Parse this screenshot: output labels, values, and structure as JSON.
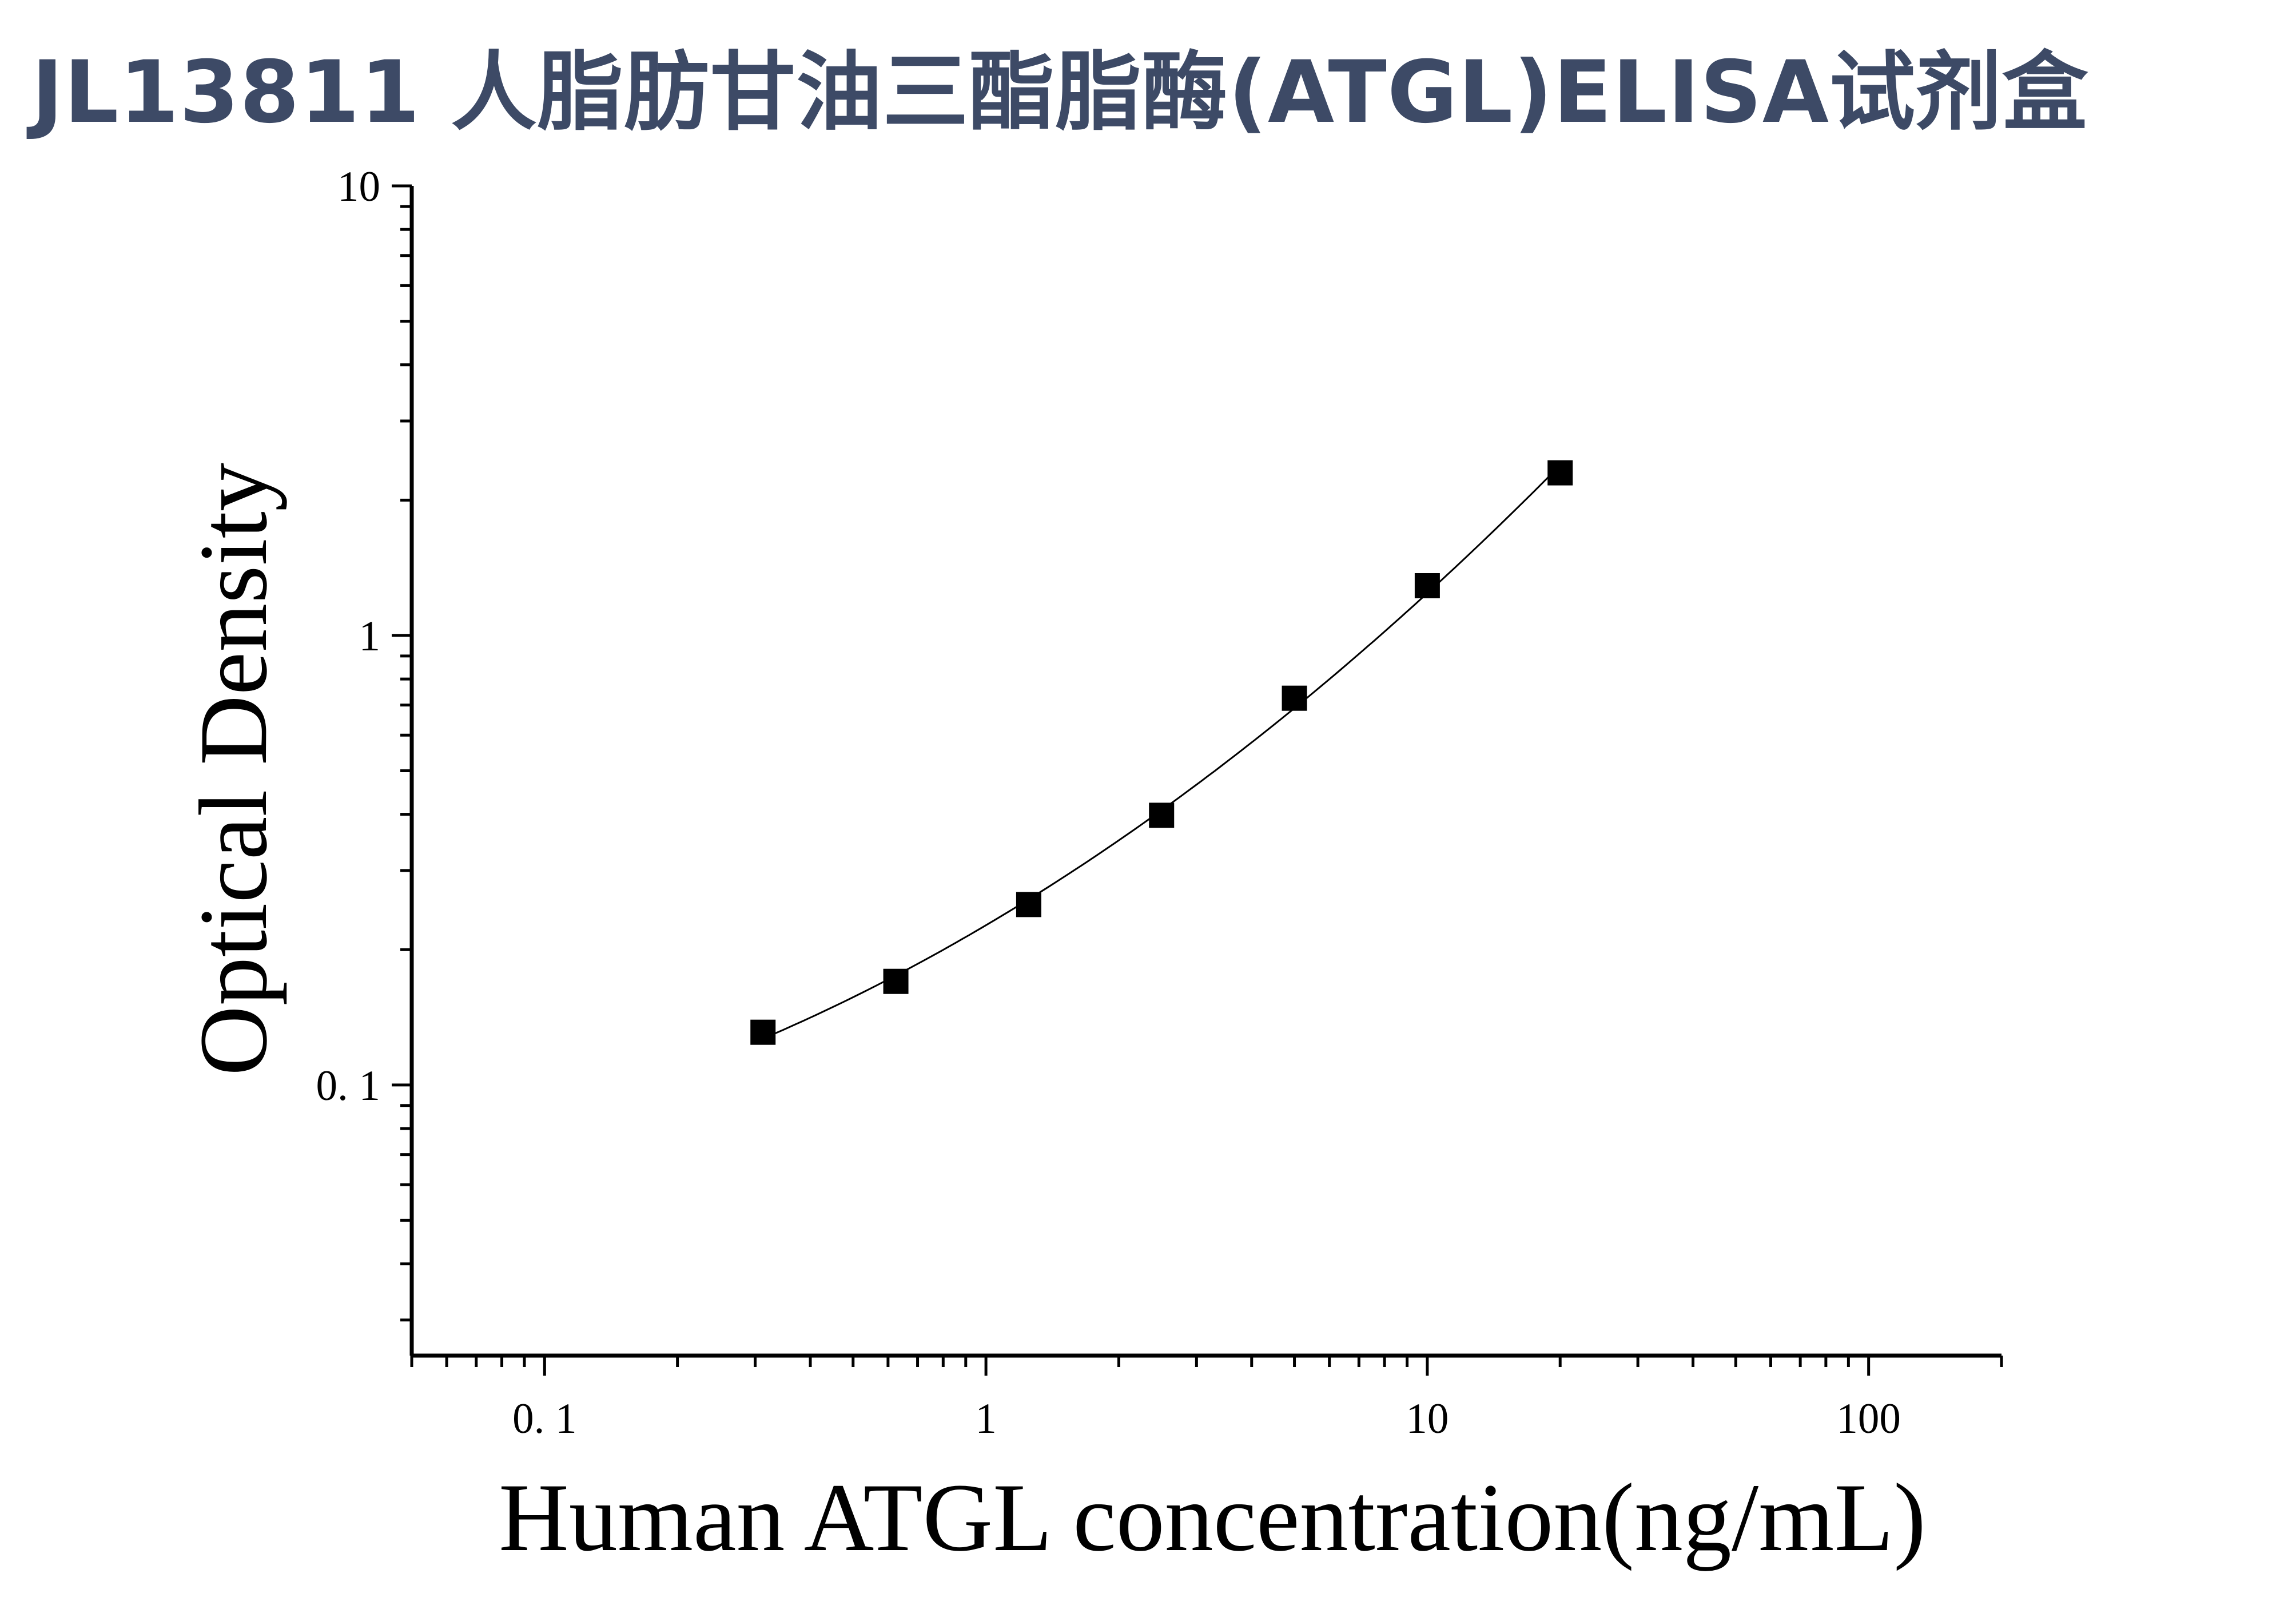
{
  "page": {
    "title": "JL13811 人脂肪甘油三酯脂酶(ATGL)ELISA试剂盒"
  },
  "chart_data": {
    "type": "scatter",
    "title": "JL13811 人脂肪甘油三酯脂酶(ATGL)ELISA试剂盒",
    "xlabel": "Human ATGL concentration(ng/mL)",
    "ylabel": "Optical Density",
    "xscale": "log",
    "yscale": "log",
    "xlim": [
      0.05,
      200
    ],
    "ylim": [
      0.025,
      10
    ],
    "x_ticks": [
      "0. 1",
      "1",
      "10",
      "100"
    ],
    "x_tick_values": [
      0.1,
      1,
      10,
      100
    ],
    "y_ticks": [
      "0. 1",
      "1",
      "10"
    ],
    "y_tick_values": [
      0.1,
      1,
      10
    ],
    "grid": false,
    "legend": "none",
    "marker": "square",
    "fit_curve": true,
    "colors": {
      "marker": "#000000",
      "line": "#000000",
      "title": "#3d4a66"
    },
    "series": [
      {
        "x": [
          0.3125,
          0.625,
          1.25,
          2.5,
          5,
          10,
          20
        ],
        "y": [
          0.131,
          0.17,
          0.252,
          0.398,
          0.725,
          1.29,
          2.3
        ]
      }
    ]
  }
}
